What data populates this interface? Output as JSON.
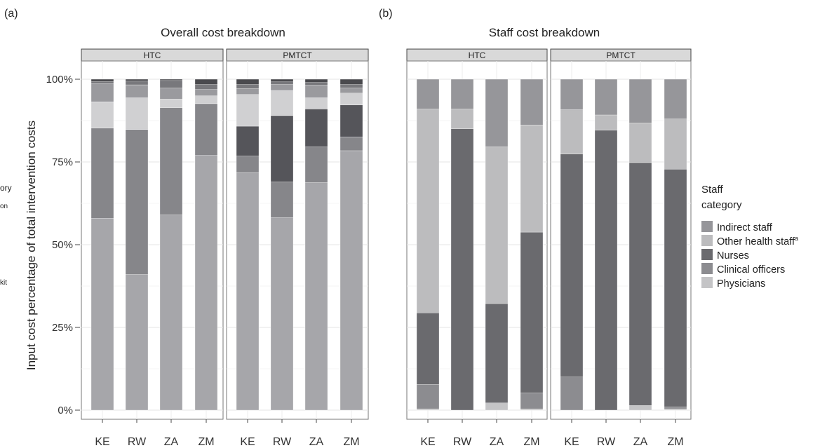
{
  "figure": {
    "ylabel": "Input cost percentage of total intervention costs",
    "y_ticks": [
      "0%",
      "25%",
      "50%",
      "75%",
      "100%"
    ]
  },
  "chart_data": [
    {
      "type": "bar",
      "stacked": true,
      "panel_label": "(a)",
      "title": "Overall cost breakdown",
      "ylabel": "Input cost percentage of total intervention costs",
      "ylim": [
        0,
        100
      ],
      "grid": true,
      "legend_cropped_fragments": [
        "ory",
        "on",
        "kit"
      ],
      "facets": [
        {
          "name": "HTC",
          "categories": [
            "KE",
            "RW",
            "ZA",
            "ZM"
          ],
          "segments": [
            {
              "values": [
                58.0,
                41.0,
                59.0,
                77.0
              ],
              "color": "#a6a6aa"
            },
            {
              "values": [
                27.2,
                43.8,
                32.4,
                15.6
              ],
              "color": "#86868a"
            },
            {
              "values": [
                0.0,
                0.0,
                0.0,
                0.0
              ],
              "color": "#55555a"
            },
            {
              "values": [
                8.0,
                9.6,
                2.6,
                2.4
              ],
              "color": "#d0d0d2"
            },
            {
              "values": [
                5.5,
                3.9,
                3.4,
                1.9
              ],
              "color": "#9a9a9e"
            },
            {
              "values": [
                0.6,
                1.2,
                2.2,
                1.5
              ],
              "color": "#78787c"
            },
            {
              "values": [
                0.7,
                0.5,
                0.4,
                1.6
              ],
              "color": "#4a4a4e"
            }
          ]
        },
        {
          "name": "PMTCT",
          "categories": [
            "KE",
            "RW",
            "ZA",
            "ZM"
          ],
          "segments": [
            {
              "values": [
                71.8,
                58.2,
                68.8,
                78.4
              ],
              "color": "#a6a6aa"
            },
            {
              "values": [
                5.0,
                10.8,
                10.8,
                4.2
              ],
              "color": "#86868a"
            },
            {
              "values": [
                9.0,
                20.0,
                11.4,
                9.6
              ],
              "color": "#55555a"
            },
            {
              "values": [
                9.6,
                7.6,
                3.4,
                3.6
              ],
              "color": "#d0d0d2"
            },
            {
              "values": [
                1.8,
                1.8,
                3.8,
                1.6
              ],
              "color": "#9a9a9e"
            },
            {
              "values": [
                1.2,
                0.8,
                0.8,
                1.0
              ],
              "color": "#78787c"
            },
            {
              "values": [
                1.6,
                0.8,
                1.0,
                1.6
              ],
              "color": "#4a4a4e"
            }
          ]
        }
      ]
    },
    {
      "type": "bar",
      "stacked": true,
      "panel_label": "(b)",
      "title": "Staff cost breakdown",
      "ylim": [
        0,
        100
      ],
      "grid": true,
      "legend_title": "Staff\ncategory",
      "legend_position": "right",
      "series": [
        {
          "name": "Physicians",
          "color": "#c4c4c6"
        },
        {
          "name": "Clinical officers",
          "color": "#8c8c90"
        },
        {
          "name": "Nurses",
          "color": "#6a6a6e"
        },
        {
          "name": "Other health staff",
          "superscript": "a",
          "color": "#bcbcbe"
        },
        {
          "name": "Indirect staff",
          "color": "#96969a"
        }
      ],
      "legend_order": [
        "Indirect staff",
        "Other health staff",
        "Nurses",
        "Clinical officers",
        "Physicians"
      ],
      "facets": [
        {
          "name": "HTC",
          "categories": [
            "KE",
            "RW",
            "ZA",
            "ZM"
          ],
          "values": {
            "Physicians": [
              0.4,
              0.0,
              2.2,
              0.4
            ],
            "Clinical officers": [
              7.4,
              0.0,
              0.0,
              4.8
            ],
            "Nurses": [
              21.6,
              85.0,
              30.0,
              48.6
            ],
            "Other health staff": [
              61.6,
              6.0,
              47.4,
              32.4
            ],
            "Indirect staff": [
              9.0,
              9.0,
              20.4,
              13.8
            ]
          }
        },
        {
          "name": "PMTCT",
          "categories": [
            "KE",
            "RW",
            "ZA",
            "ZM"
          ],
          "values": {
            "Physicians": [
              0.0,
              0.0,
              1.4,
              0.4
            ],
            "Clinical officers": [
              10.0,
              0.0,
              0.0,
              0.6
            ],
            "Nurses": [
              67.4,
              84.6,
              73.4,
              71.8
            ],
            "Other health staff": [
              13.4,
              4.6,
              12.0,
              15.2
            ],
            "Indirect staff": [
              9.2,
              10.8,
              13.2,
              12.0
            ]
          }
        }
      ]
    }
  ]
}
